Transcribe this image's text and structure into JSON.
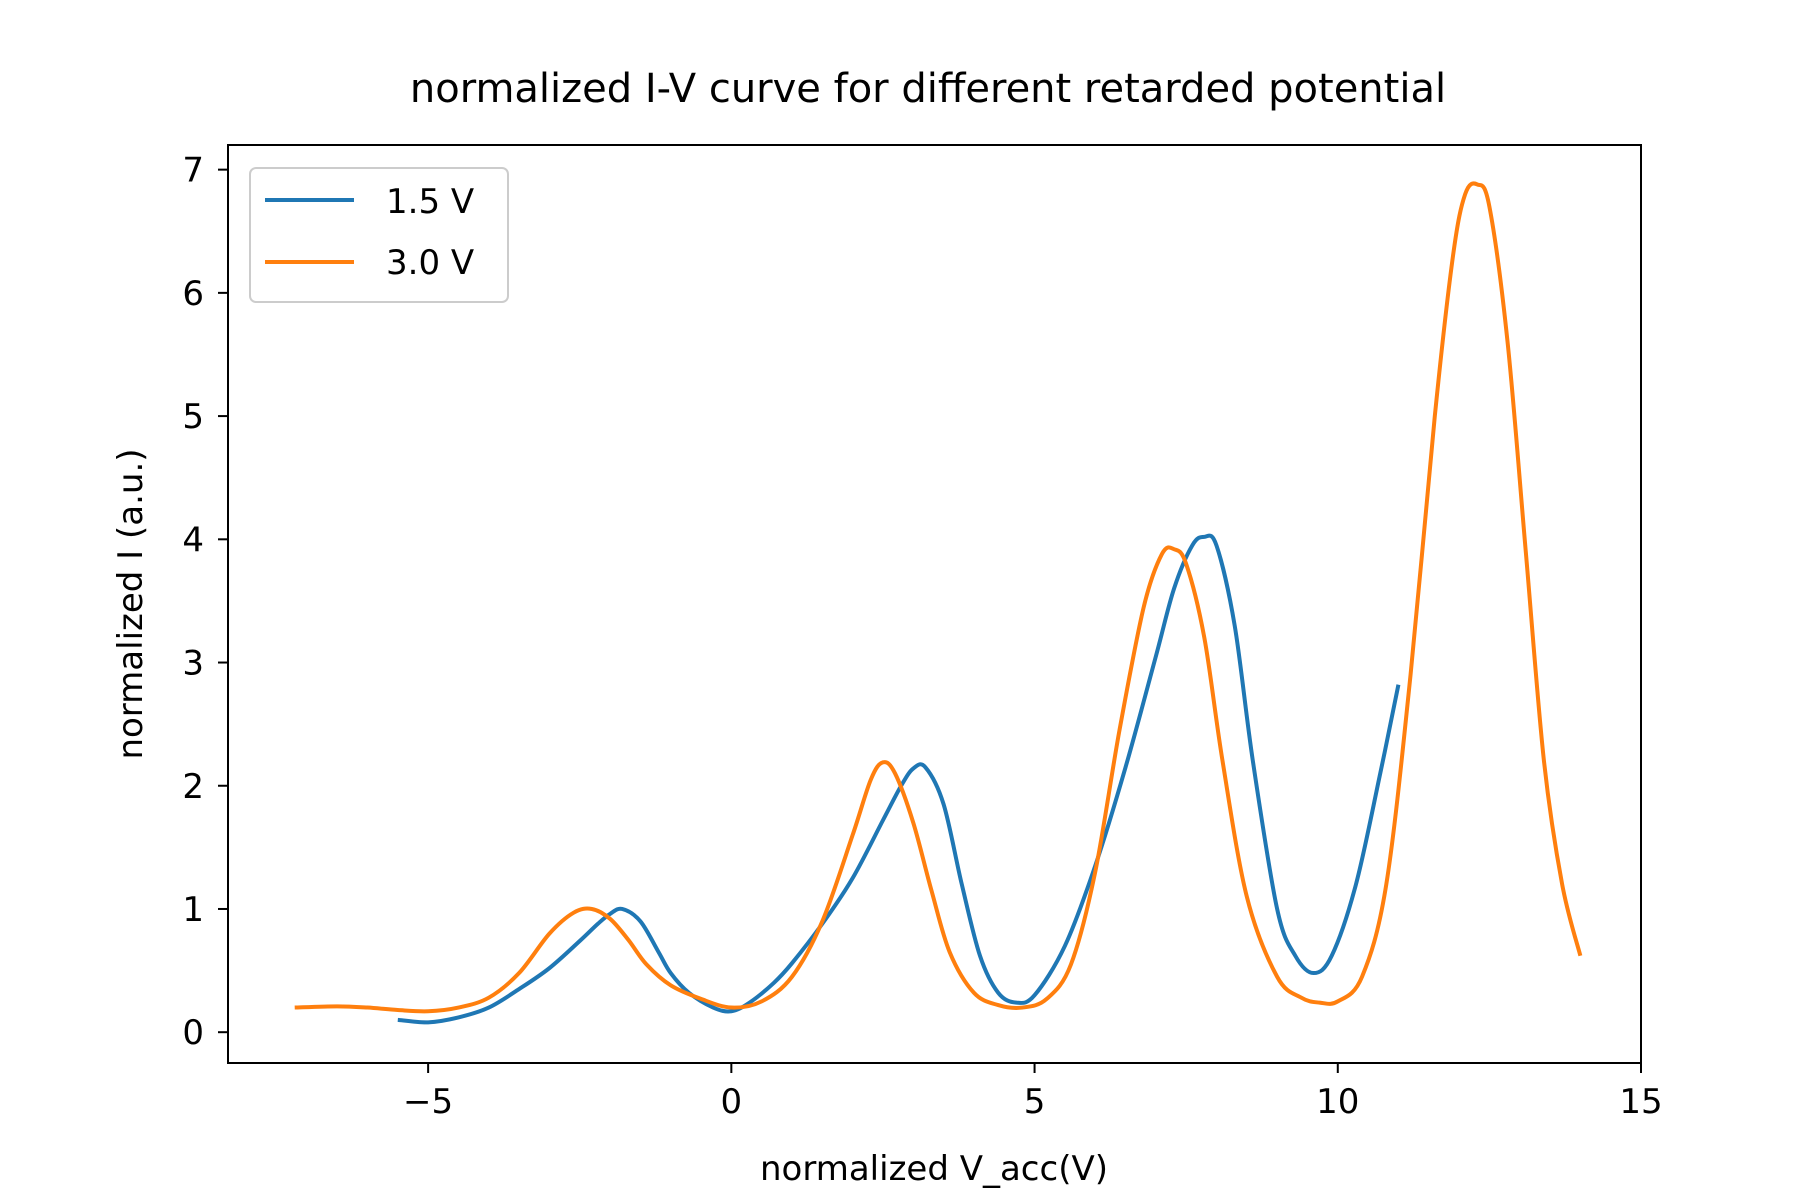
{
  "chart_data": {
    "type": "line",
    "title": "normalized I-V curve for different retarded potential",
    "xlabel": "normalized V_acc(V)",
    "ylabel": "normalized I (a.u.)",
    "xlim": [
      -8.3,
      15.0
    ],
    "ylim": [
      -0.25,
      7.2
    ],
    "xticks": [
      -5,
      0,
      5,
      10,
      15
    ],
    "xtick_labels": [
      "−5",
      "0",
      "5",
      "10",
      "15"
    ],
    "yticks": [
      0,
      1,
      2,
      3,
      4,
      5,
      6,
      7
    ],
    "ytick_labels": [
      "0",
      "1",
      "2",
      "3",
      "4",
      "5",
      "6",
      "7"
    ],
    "grid": false,
    "legend_position": "top-left",
    "series": [
      {
        "name": "1.5 V",
        "color": "#1f77b4",
        "x": [
          -5.5,
          -5.0,
          -4.5,
          -4.0,
          -3.5,
          -3.0,
          -2.5,
          -2.2,
          -2.0,
          -1.8,
          -1.5,
          -1.2,
          -1.0,
          -0.7,
          -0.3,
          0.0,
          0.3,
          0.7,
          1.0,
          1.5,
          2.0,
          2.5,
          2.8,
          3.0,
          3.2,
          3.5,
          3.8,
          4.1,
          4.4,
          4.7,
          5.0,
          5.5,
          6.0,
          6.5,
          7.0,
          7.3,
          7.6,
          7.8,
          8.0,
          8.3,
          8.6,
          9.0,
          9.3,
          9.6,
          9.9,
          10.3,
          10.7,
          11.0
        ],
        "y": [
          0.1,
          0.08,
          0.12,
          0.2,
          0.35,
          0.52,
          0.74,
          0.88,
          0.96,
          1.0,
          0.9,
          0.65,
          0.48,
          0.32,
          0.2,
          0.17,
          0.24,
          0.4,
          0.56,
          0.88,
          1.25,
          1.72,
          2.0,
          2.14,
          2.15,
          1.85,
          1.2,
          0.62,
          0.32,
          0.24,
          0.3,
          0.7,
          1.35,
          2.15,
          3.05,
          3.6,
          3.95,
          4.02,
          3.95,
          3.3,
          2.2,
          1.0,
          0.62,
          0.48,
          0.62,
          1.2,
          2.1,
          2.82
        ]
      },
      {
        "name": "3.0 V",
        "color": "#ff7f0e",
        "x": [
          -7.2,
          -6.5,
          -6.0,
          -5.5,
          -5.0,
          -4.5,
          -4.0,
          -3.5,
          -3.0,
          -2.6,
          -2.3,
          -2.0,
          -1.7,
          -1.4,
          -1.0,
          -0.5,
          0.0,
          0.5,
          1.0,
          1.5,
          2.0,
          2.3,
          2.5,
          2.7,
          3.0,
          3.3,
          3.6,
          4.0,
          4.4,
          4.8,
          5.2,
          5.6,
          6.0,
          6.4,
          6.8,
          7.1,
          7.3,
          7.5,
          7.8,
          8.1,
          8.5,
          9.0,
          9.4,
          9.7,
          10.0,
          10.4,
          10.8,
          11.2,
          11.6,
          11.9,
          12.1,
          12.3,
          12.5,
          12.8,
          13.1,
          13.4,
          13.7,
          14.0
        ],
        "y": [
          0.2,
          0.21,
          0.2,
          0.18,
          0.17,
          0.2,
          0.28,
          0.48,
          0.8,
          0.97,
          1.0,
          0.92,
          0.75,
          0.55,
          0.38,
          0.27,
          0.2,
          0.25,
          0.45,
          0.9,
          1.6,
          2.05,
          2.19,
          2.1,
          1.7,
          1.15,
          0.65,
          0.32,
          0.22,
          0.2,
          0.27,
          0.55,
          1.3,
          2.45,
          3.45,
          3.88,
          3.92,
          3.8,
          3.2,
          2.2,
          1.1,
          0.45,
          0.28,
          0.24,
          0.25,
          0.45,
          1.2,
          2.9,
          5.0,
          6.3,
          6.8,
          6.88,
          6.7,
          5.6,
          3.9,
          2.2,
          1.2,
          0.62
        ]
      }
    ]
  }
}
